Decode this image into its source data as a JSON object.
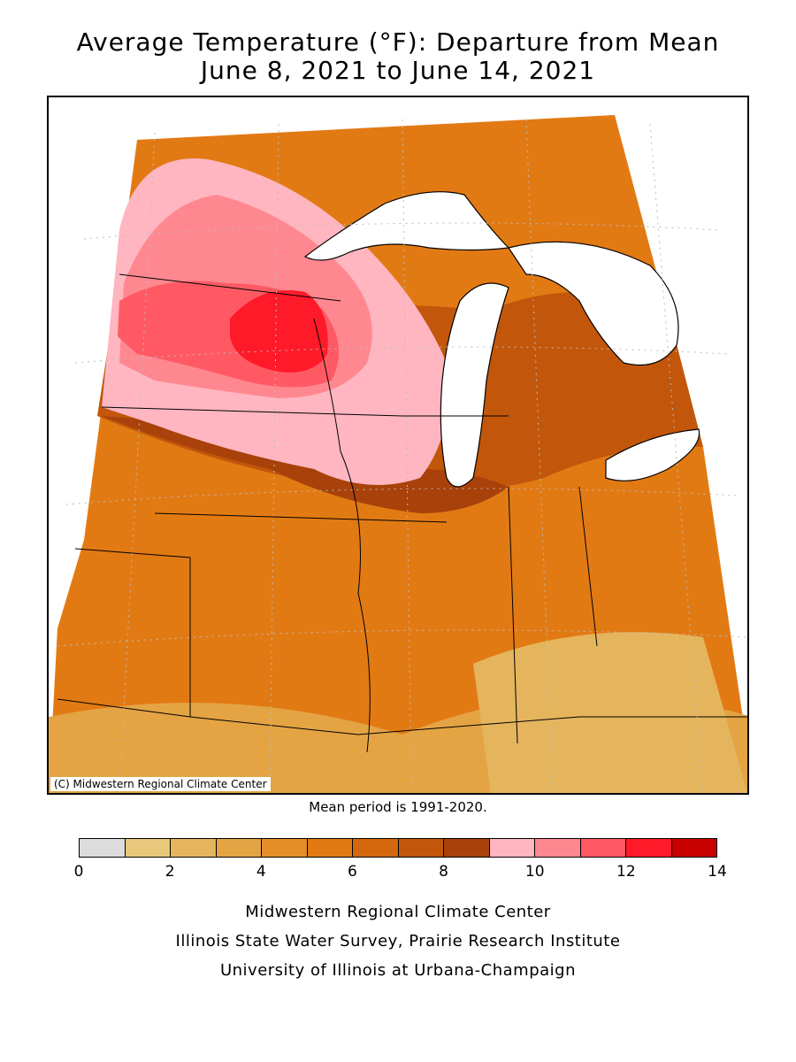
{
  "title_line1": "Average Temperature (°F): Departure from Mean",
  "title_line2": "June 8, 2021 to June 14, 2021",
  "copyright": "(C) Midwestern Regional Climate Center",
  "mean_period": "Mean period is 1991-2020.",
  "legend": {
    "colors": [
      "#dcdcdc",
      "#e8c87a",
      "#e5b55e",
      "#e4a444",
      "#e48e2a",
      "#e27a14",
      "#d4680d",
      "#c2570b",
      "#a8420a",
      "#ffb6c1",
      "#ff8890",
      "#ff5a64",
      "#ff1a2a",
      "#c80000"
    ],
    "tick_labels": [
      "0",
      "2",
      "4",
      "6",
      "8",
      "10",
      "12",
      "14"
    ],
    "range": [
      0,
      14
    ]
  },
  "footer": {
    "line1": "Midwestern Regional Climate Center",
    "line2": "Illinois State Water Survey, Prairie Research Institute",
    "line3": "University of Illinois at Urbana-Champaign"
  }
}
